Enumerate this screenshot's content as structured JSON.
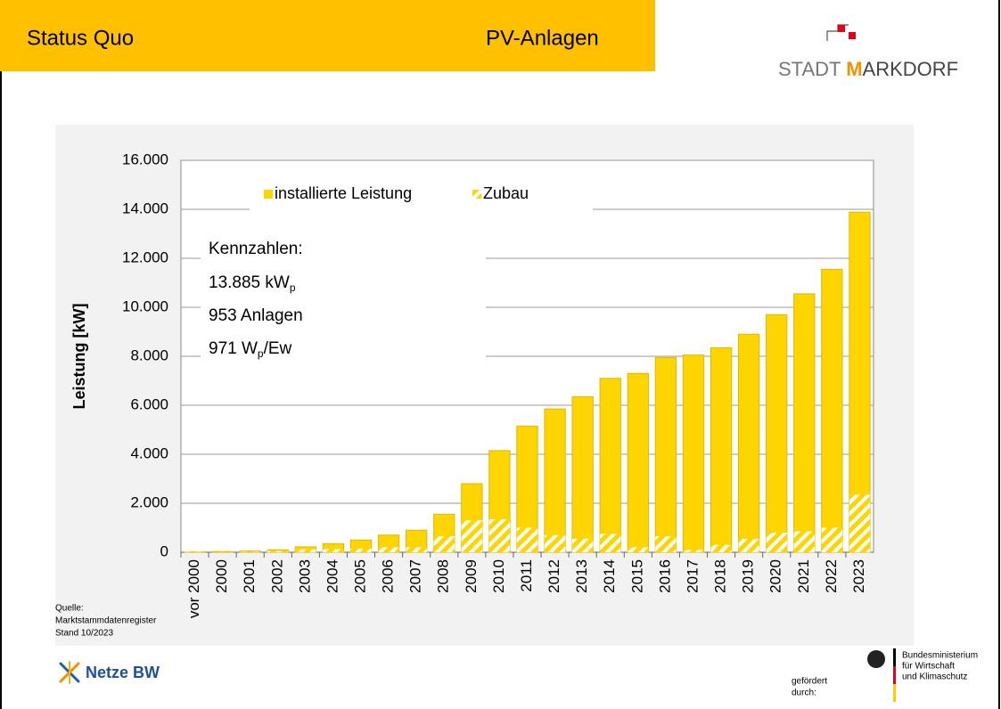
{
  "header": {
    "left": "Status Quo",
    "right": "PV-Anlagen"
  },
  "logo": {
    "part1": "STADT ",
    "part2": "M",
    "part3": "ARKDORF"
  },
  "source": [
    "Quelle:",
    "Marktstammdatenregister",
    "Stand 10/2023"
  ],
  "footer": {
    "company": "Netze BW",
    "funded": [
      "gefördert",
      "durch:"
    ],
    "ministry": [
      "Bundesministerium",
      "für Wirtschaft",
      "und Klimaschutz"
    ]
  },
  "chart_data": {
    "type": "bar",
    "ylabel": "Leistung [kW]",
    "categories": [
      "vor 2000",
      "2000",
      "2001",
      "2002",
      "2003",
      "2004",
      "2005",
      "2006",
      "2007",
      "2008",
      "2009",
      "2010",
      "2011",
      "2012",
      "2013",
      "2014",
      "2015",
      "2016",
      "2017",
      "2018",
      "2019",
      "2020",
      "2021",
      "2022",
      "2023"
    ],
    "series": [
      {
        "name": "installierte Leistung",
        "color": "#ffd500",
        "values": [
          20,
          30,
          50,
          100,
          220,
          350,
          500,
          700,
          900,
          1550,
          2800,
          4150,
          5150,
          5850,
          6350,
          7100,
          7300,
          7950,
          8050,
          8350,
          8900,
          9700,
          10550,
          11550,
          13885
        ]
      },
      {
        "name": "Zubau",
        "color": "#ffd500",
        "hatched": true,
        "values": [
          20,
          10,
          20,
          50,
          120,
          130,
          150,
          200,
          200,
          650,
          1300,
          1350,
          1000,
          700,
          550,
          750,
          200,
          650,
          100,
          300,
          550,
          800,
          850,
          1000,
          2350
        ]
      }
    ],
    "ylim": [
      0,
      16000
    ],
    "yticks": [
      0,
      {
        "value": 2000,
        "label": "2.000"
      },
      {
        "value": 4000,
        "label": "4.000"
      },
      {
        "value": 6000,
        "label": "6.000"
      },
      {
        "value": 8000,
        "label": "8.000"
      },
      {
        "value": 10000,
        "label": "10.000"
      },
      {
        "value": 12000,
        "label": "12.000"
      },
      {
        "value": 14000,
        "label": "14.000"
      },
      {
        "value": 16000,
        "label": "16.000"
      }
    ],
    "grid": true,
    "annotations": [
      {
        "text": "Kennzahlen:"
      },
      {
        "text": "13.885 kW",
        "sub": "p"
      },
      {
        "text": "953 Anlagen"
      },
      {
        "text": "971 W",
        "sub": "p",
        "after": "/Ew"
      }
    ]
  }
}
